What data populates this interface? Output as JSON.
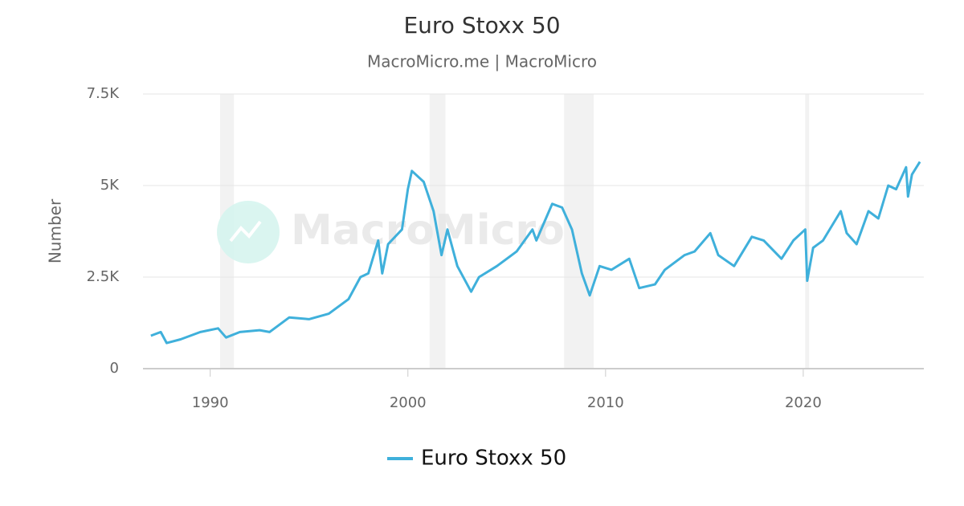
{
  "chart_data": {
    "type": "line",
    "title": "Euro Stoxx 50",
    "subtitle": "MacroMicro.me | MacroMicro",
    "watermark": "MacroMicro",
    "y_label": "Number",
    "xlim": [
      1986.6,
      2026.1
    ],
    "xticks": [
      1990,
      2000,
      2010,
      2020
    ],
    "ylim": [
      0,
      7500
    ],
    "yticks": [
      0,
      {
        "value": 2500,
        "label": "2.5K"
      },
      {
        "value": 5000,
        "label": "5K"
      },
      {
        "value": 7500,
        "label": "7.5K"
      }
    ],
    "grid": true,
    "legend": "bottom",
    "shaded_ranges": [
      [
        1990.5,
        1991.2
      ],
      [
        2001.1,
        2001.9
      ],
      [
        2007.9,
        2009.4
      ],
      [
        2020.1,
        2020.3
      ]
    ],
    "x": [
      1987.0,
      1987.5,
      1987.8,
      1988.5,
      1989.5,
      1990.4,
      1990.8,
      1991.5,
      1992.5,
      1993.0,
      1994.0,
      1995.0,
      1996.0,
      1997.0,
      1997.6,
      1998.0,
      1998.5,
      1998.7,
      1999.0,
      1999.7,
      2000.0,
      2000.2,
      2000.8,
      2001.3,
      2001.7,
      2002.0,
      2002.5,
      2003.2,
      2003.6,
      2004.5,
      2005.5,
      2006.3,
      2006.5,
      2007.3,
      2007.8,
      2008.3,
      2008.8,
      2009.2,
      2009.7,
      2010.3,
      2011.2,
      2011.7,
      2012.5,
      2013.0,
      2014.0,
      2014.5,
      2015.3,
      2015.7,
      2016.5,
      2017.4,
      2018.0,
      2018.9,
      2019.5,
      2020.1,
      2020.2,
      2020.5,
      2021.0,
      2021.9,
      2022.2,
      2022.7,
      2023.3,
      2023.8,
      2024.3,
      2024.7,
      2025.2,
      2025.3,
      2025.5,
      2025.9
    ],
    "series": [
      {
        "name": "Euro Stoxx 50",
        "color": "#3fb0db",
        "values": [
          900,
          1000,
          700,
          800,
          1000,
          1100,
          850,
          1000,
          1050,
          1000,
          1400,
          1350,
          1500,
          1900,
          2500,
          2600,
          3500,
          2600,
          3400,
          3800,
          4900,
          5400,
          5100,
          4300,
          3100,
          3800,
          2800,
          2100,
          2500,
          2800,
          3200,
          3800,
          3500,
          4500,
          4400,
          3800,
          2600,
          2000,
          2800,
          2700,
          3000,
          2200,
          2300,
          2700,
          3100,
          3200,
          3700,
          3100,
          2800,
          3600,
          3500,
          3000,
          3500,
          3800,
          2400,
          3300,
          3500,
          4300,
          3700,
          3400,
          4300,
          4100,
          5000,
          4900,
          5500,
          4700,
          5300,
          5650
        ]
      }
    ]
  }
}
